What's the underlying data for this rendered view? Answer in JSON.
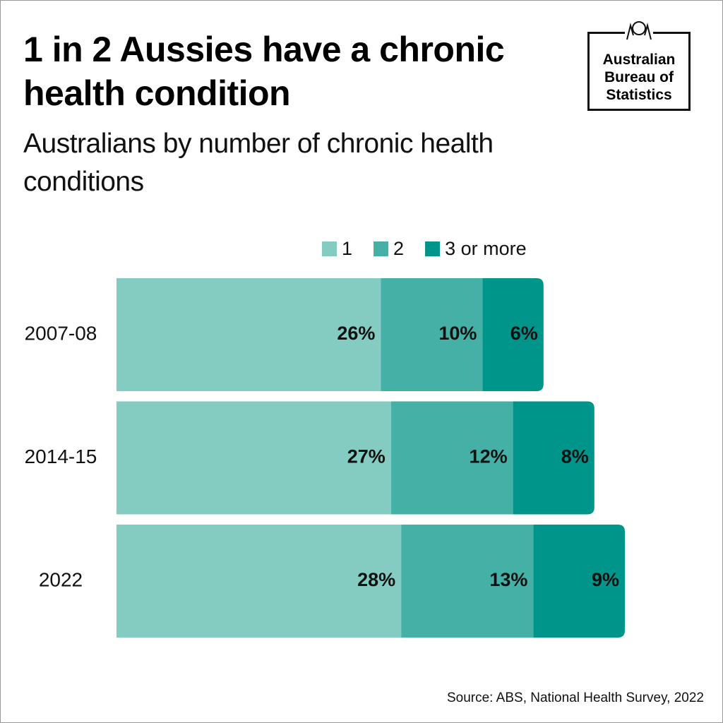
{
  "chart_data": {
    "type": "stacked-barh",
    "title": "1 in 2 Aussies have a chronic health condition",
    "subtitle": "Australians by number of chronic health conditions",
    "logo": [
      "Australian",
      "Bureau of",
      "Statistics"
    ],
    "source": "Source: ABS, National Health Survey, 2022",
    "categories": [
      "2007-08",
      "2014-15",
      "2022"
    ],
    "series": [
      {
        "name": "1",
        "color": "#84cbc1",
        "values": [
          26,
          27,
          28
        ],
        "value_labels": [
          "26%",
          "27%",
          "28%"
        ]
      },
      {
        "name": "2",
        "color": "#45b0a6",
        "values": [
          10,
          12,
          13
        ],
        "value_labels": [
          "10%",
          "12%",
          "13%"
        ]
      },
      {
        "name": "3 or more",
        "color": "#00958a",
        "values": [
          6,
          8,
          9
        ],
        "value_labels": [
          "6%",
          "8%",
          "9%"
        ]
      }
    ]
  }
}
